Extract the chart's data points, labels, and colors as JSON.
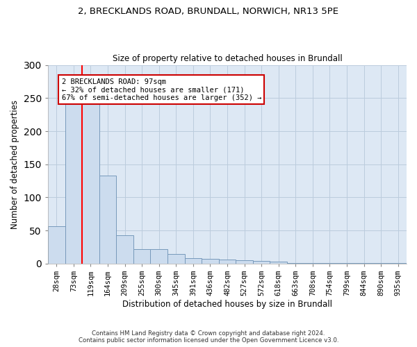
{
  "title_line1": "2, BRECKLANDS ROAD, BRUNDALL, NORWICH, NR13 5PE",
  "title_line2": "Size of property relative to detached houses in Brundall",
  "xlabel": "Distribution of detached houses by size in Brundall",
  "ylabel": "Number of detached properties",
  "categories": [
    "28sqm",
    "73sqm",
    "119sqm",
    "164sqm",
    "209sqm",
    "255sqm",
    "300sqm",
    "345sqm",
    "391sqm",
    "436sqm",
    "482sqm",
    "527sqm",
    "572sqm",
    "618sqm",
    "663sqm",
    "708sqm",
    "754sqm",
    "799sqm",
    "844sqm",
    "890sqm",
    "935sqm"
  ],
  "values": [
    57,
    241,
    241,
    133,
    43,
    22,
    22,
    15,
    8,
    7,
    6,
    5,
    4,
    3,
    1,
    1,
    1,
    1,
    1,
    1,
    1
  ],
  "bar_color": "#ccdcee",
  "bar_edge_color": "#7799bb",
  "red_line_x": 1.5,
  "annotation_text": "2 BRECKLANDS ROAD: 97sqm\n← 32% of detached houses are smaller (171)\n67% of semi-detached houses are larger (352) →",
  "annotation_box_color": "#ffffff",
  "annotation_box_edge": "#cc0000",
  "footer_text": "Contains HM Land Registry data © Crown copyright and database right 2024.\nContains public sector information licensed under the Open Government Licence v3.0.",
  "ylim": [
    0,
    300
  ],
  "background_color": "#ffffff",
  "axes_bg_color": "#dde8f4",
  "grid_color": "#bbccdd"
}
